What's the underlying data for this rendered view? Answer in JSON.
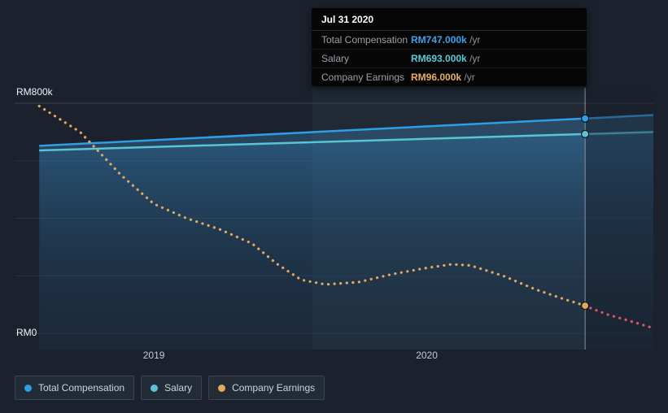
{
  "tooltip": {
    "date": "Jul 31 2020",
    "rows": [
      {
        "label": "Total Compensation",
        "value": "RM747.000k",
        "unit": "/yr",
        "color": "#3aa2ec"
      },
      {
        "label": "Salary",
        "value": "RM693.000k",
        "unit": "/yr",
        "color": "#55cbd9"
      },
      {
        "label": "Company Earnings",
        "value": "RM96.000k",
        "unit": "/yr",
        "color": "#e7ae63"
      }
    ]
  },
  "axes": {
    "y_max_label": "RM800k",
    "y_min_label": "RM0",
    "x_tick_labels": [
      "2019",
      "2020"
    ]
  },
  "legend": {
    "items": [
      {
        "label": "Total Compensation",
        "color": "#2e9fe6"
      },
      {
        "label": "Salary",
        "color": "#57c5d5"
      },
      {
        "label": "Company Earnings",
        "color": "#e3aa5f"
      }
    ]
  },
  "chart_data": {
    "type": "line",
    "title": "Compensation vs Company Earnings over time",
    "x_domain": [
      2018.49,
      2020.83
    ],
    "ylim": [
      0,
      800000
    ],
    "y_ticks": [
      0,
      200000,
      400000,
      600000,
      800000
    ],
    "x_ticks": [
      2019,
      2020
    ],
    "highlight_band": [
      2019.58,
      2020.58
    ],
    "dim_after": 2020.58,
    "hover_x": 2020.58,
    "hover_date": "Jul 31 2020",
    "series": [
      {
        "name": "Total Compensation",
        "color": "#2e9fe6",
        "style": "solid",
        "points": [
          [
            2018.58,
            652000
          ],
          [
            2020.58,
            747000
          ],
          [
            2020.83,
            759000
          ]
        ]
      },
      {
        "name": "Salary",
        "color": "#57c5d5",
        "style": "solid",
        "points": [
          [
            2018.58,
            636000
          ],
          [
            2020.58,
            693000
          ],
          [
            2020.83,
            700000
          ]
        ]
      },
      {
        "name": "Company Earnings",
        "color": "#e3aa5f",
        "style": "dotted",
        "points": [
          [
            2018.58,
            790000
          ],
          [
            2018.73,
            700000
          ],
          [
            2018.88,
            550000
          ],
          [
            2019.0,
            450000
          ],
          [
            2019.12,
            400000
          ],
          [
            2019.24,
            362000
          ],
          [
            2019.36,
            312000
          ],
          [
            2019.45,
            242000
          ],
          [
            2019.54,
            186000
          ],
          [
            2019.63,
            170000
          ],
          [
            2019.75,
            178000
          ],
          [
            2019.87,
            205000
          ],
          [
            2019.99,
            226000
          ],
          [
            2020.09,
            240000
          ],
          [
            2020.16,
            236000
          ],
          [
            2020.28,
            200000
          ],
          [
            2020.4,
            152000
          ],
          [
            2020.5,
            120000
          ],
          [
            2020.58,
            96000
          ]
        ]
      },
      {
        "name": "Company Earnings (forecast)",
        "color": "#e0556a",
        "style": "dotted",
        "points": [
          [
            2020.6,
            88000
          ],
          [
            2020.66,
            66000
          ],
          [
            2020.74,
            44000
          ],
          [
            2020.83,
            18000
          ]
        ]
      }
    ],
    "markers": [
      {
        "series": "Total Compensation",
        "x": 2020.58,
        "value": 747000,
        "color": "#2e9fe6"
      },
      {
        "series": "Salary",
        "x": 2020.58,
        "value": 693000,
        "color": "#57c5d5"
      },
      {
        "series": "Company Earnings",
        "x": 2020.58,
        "value": 96000,
        "color": "#e3aa5f"
      }
    ]
  }
}
